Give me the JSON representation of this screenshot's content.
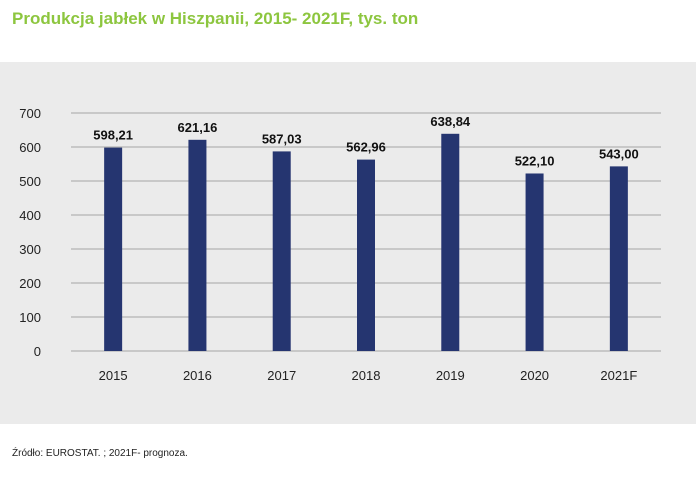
{
  "chart_data": {
    "type": "bar",
    "title": "Produkcja jabłek w Hiszpanii, 2015- 2021F, tys. ton",
    "categories": [
      "2015",
      "2016",
      "2017",
      "2018",
      "2019",
      "2020",
      "2021F"
    ],
    "values": [
      598.21,
      621.16,
      587.03,
      562.96,
      638.84,
      522.1,
      543.0
    ],
    "data_labels": [
      "598,21",
      "621,16",
      "587,03",
      "562,96",
      "638,84",
      "522,10",
      "543,00"
    ],
    "y_ticks": [
      "0",
      "100",
      "200",
      "300",
      "400",
      "500",
      "600",
      "700"
    ],
    "ylim": [
      0,
      700
    ],
    "grid": true,
    "legend": "none",
    "bar_color": "#253570",
    "xlabel": "",
    "ylabel": ""
  },
  "source": "Źródło: EUROSTAT. ; 2021F- prognoza."
}
